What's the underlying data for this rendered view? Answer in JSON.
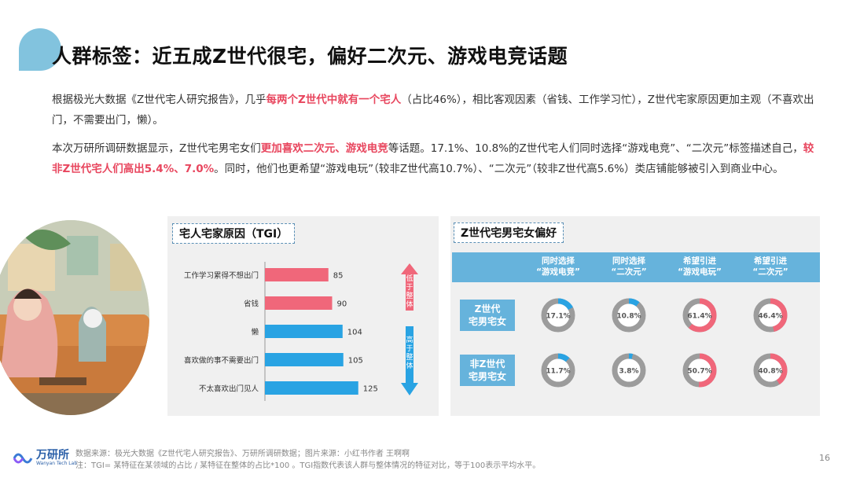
{
  "title": "人群标签：近五成Z世代很宅，偏好二次元、游戏电竞话题",
  "para1": {
    "a": "根据极光大数据《Z世代宅人研究报告》，几乎",
    "b": "每两个Z世代中就有一个宅人",
    "c": "（占比46%），相比客观因素（省钱、工作学习忙），Z世代宅家原因更加主观（不喜欢出门，不需要出门，懒）。"
  },
  "para2": {
    "a": "本次万研所调研数据显示，Z世代宅男宅女们",
    "b": "更加喜欢二次元、游戏电竞",
    "c": "等话题。17.1%、10.8%的Z世代宅人们同时选择“游戏电竞”、“二次元”标签描述自己，",
    "d": "较非Z世代宅人们高出5.4%、7.0%",
    "e": "。同时，他们也更希望“游戏电玩”（较非Z世代高10.7%）、“二次元”（较非Z世代高5.6%）类店铺能够被引入到商业中心。"
  },
  "left_panel": {
    "title": "宅人宅家原因（TGI）",
    "arrow_low": "低于整体",
    "arrow_high": "高于整体"
  },
  "right_panel": {
    "title": "Z世代宅男宅女偏好",
    "headers": [
      [
        "同时选择",
        "“游戏电竞”"
      ],
      [
        "同时选择",
        "“二次元”"
      ],
      [
        "希望引进",
        "“游戏电玩”"
      ],
      [
        "希望引进",
        "“二次元”"
      ]
    ],
    "rows": [
      [
        "Z世代",
        "宅男宅女"
      ],
      [
        "非Z世代",
        "宅男宅女"
      ]
    ]
  },
  "chart_data": [
    {
      "type": "bar",
      "orientation": "horizontal",
      "title": "宅人宅家原因（TGI）",
      "categories": [
        "工作学习累得不想出门",
        "省钱",
        "懒",
        "喜欢做的事不需要出门",
        "不太喜欢出门见人"
      ],
      "values": [
        85,
        90,
        104,
        105,
        125
      ],
      "colors": [
        "#f0677a",
        "#f0677a",
        "#29a3e3",
        "#29a3e3",
        "#29a3e3"
      ]
    },
    {
      "type": "pie",
      "subtype": "donut-grid",
      "title": "Z世代宅男宅女偏好",
      "columns": [
        "同时选择“游戏电竞”",
        "同时选择“二次元”",
        "希望引进“游戏电玩”",
        "希望引进“二次元”"
      ],
      "series": [
        {
          "name": "Z世代宅男宅女",
          "values": [
            17.1,
            10.8,
            61.4,
            46.4
          ],
          "labels": [
            "17.1%",
            "10.8%",
            "61.4%",
            "46.4%"
          ]
        },
        {
          "name": "非Z世代宅男宅女",
          "values": [
            11.7,
            3.8,
            50.7,
            40.8
          ],
          "labels": [
            "11.7%",
            "3.8%",
            "50.7%",
            "40.8%"
          ]
        }
      ],
      "colors": [
        "#29a3e3",
        "#29a3e3",
        "#f0677a",
        "#f0677a"
      ],
      "track_color": "#9c9c9c"
    }
  ],
  "footer": {
    "logo_text": "万研所",
    "logo_sub": "Wanyan Tech Lab",
    "source1": "数据来源：极光大数据《Z世代宅人研究报告》、万研所调研数据；图片来源：小红书作者 王啊啊",
    "source2": "注：TGI= 某特征在某领域的占比 / 某特征在整体的占比*100 。TGI指数代表该人群与整体情况的特征对比，等于100表示平均水平。",
    "page": "16"
  }
}
